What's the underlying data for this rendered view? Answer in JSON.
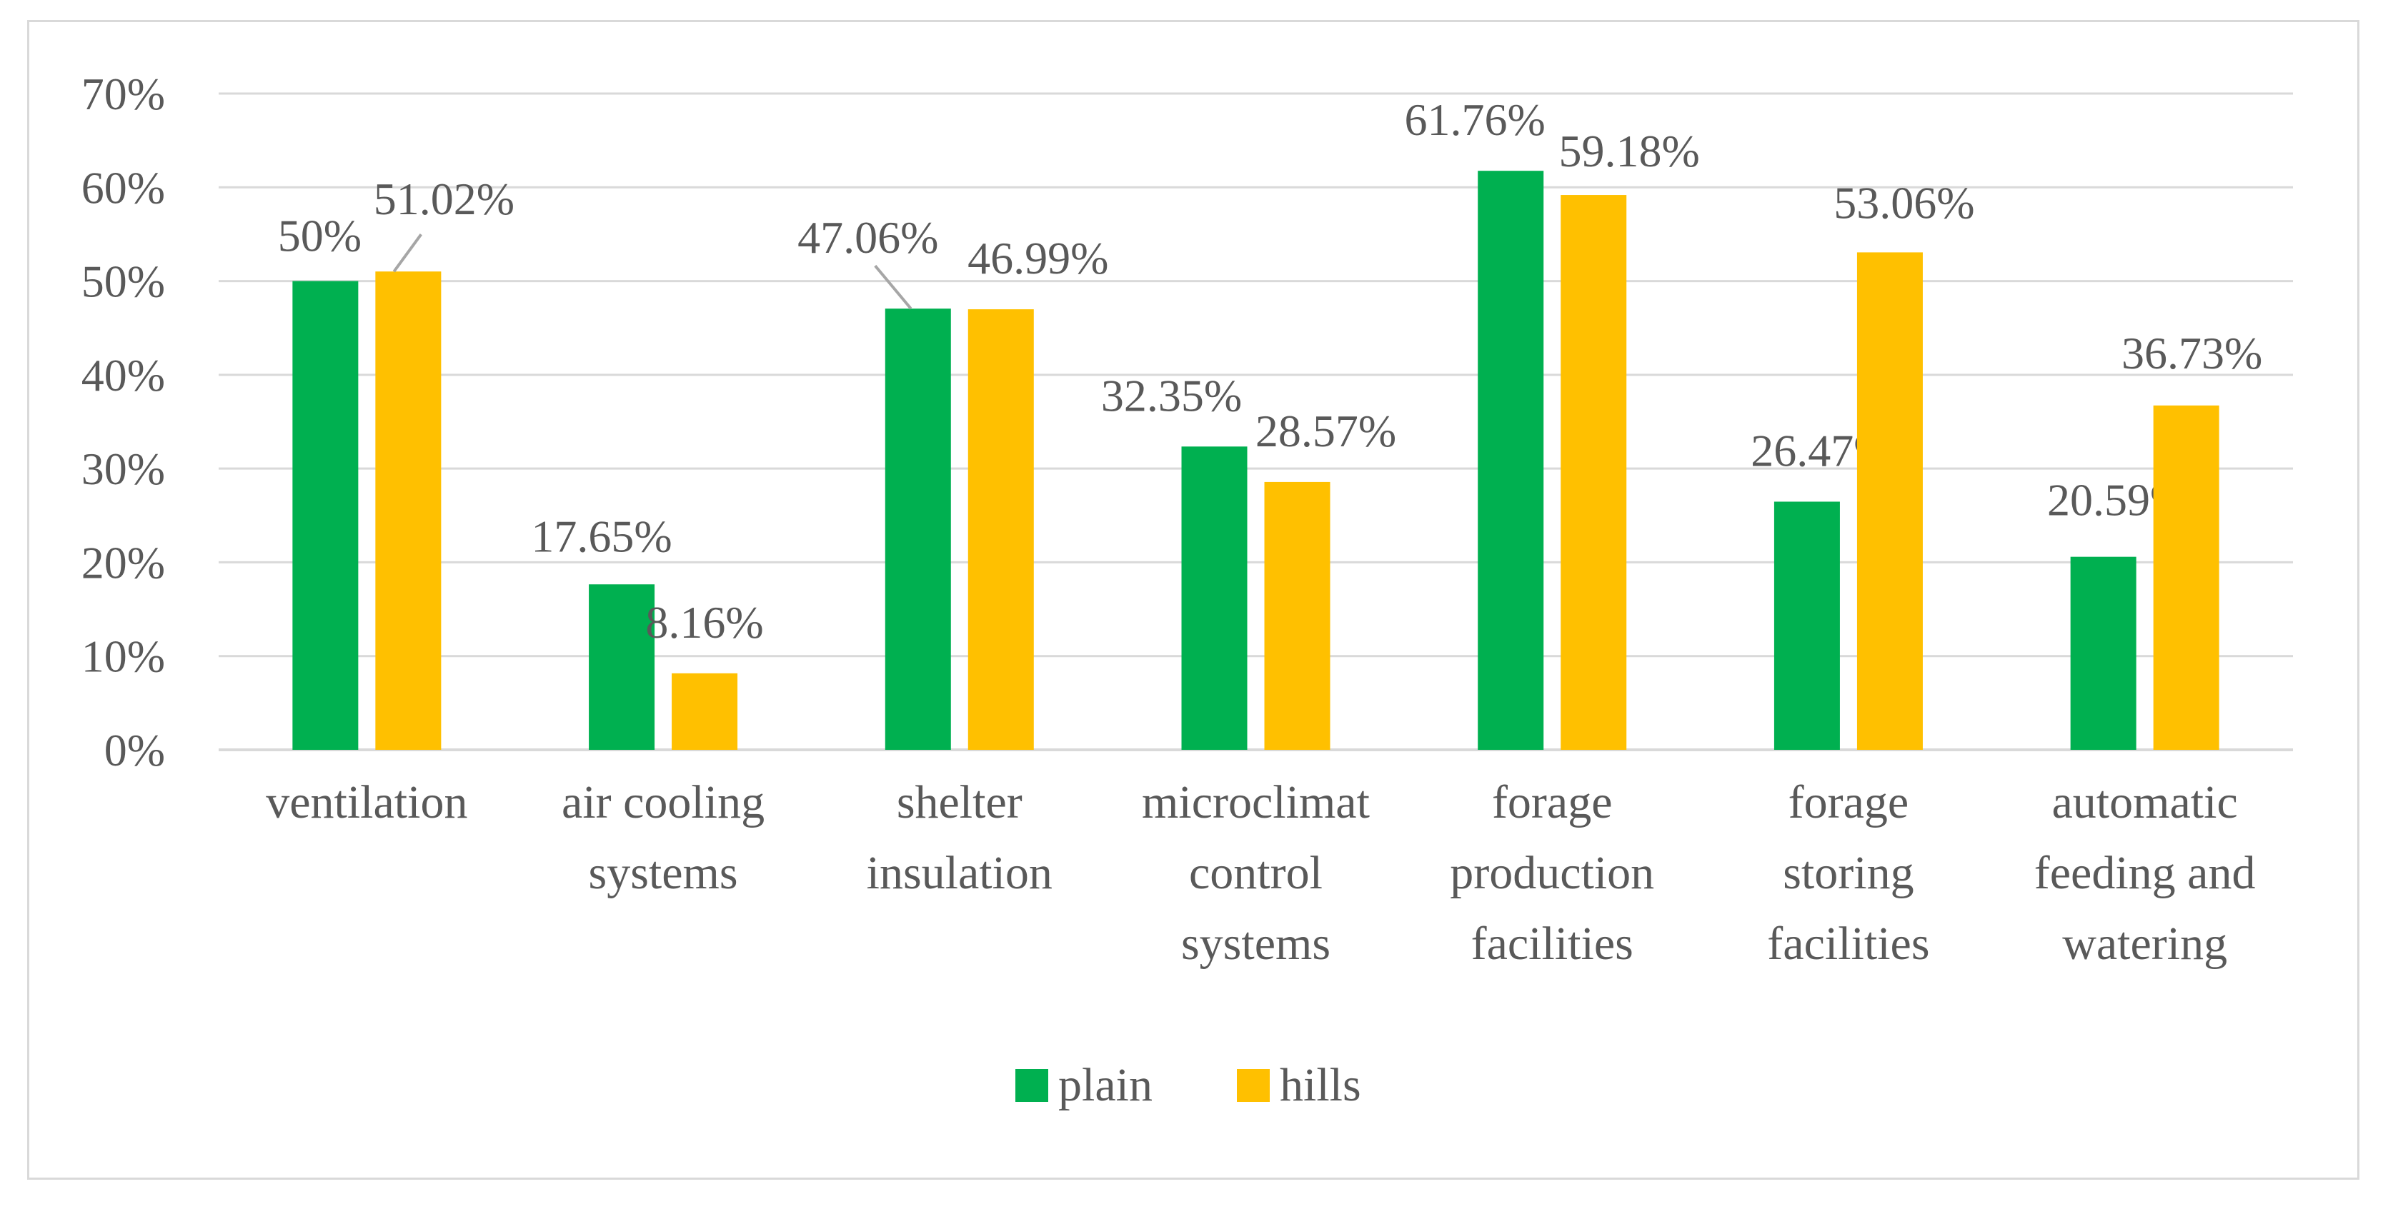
{
  "chart_data": {
    "type": "bar",
    "title": "",
    "xlabel": "",
    "ylabel": "",
    "ylim": [
      0,
      70
    ],
    "y_ticks": [
      "0%",
      "10%",
      "20%",
      "30%",
      "40%",
      "50%",
      "60%",
      "70%"
    ],
    "y_tick_values": [
      0,
      10,
      20,
      30,
      40,
      50,
      60,
      70
    ],
    "grid": true,
    "legend_position": "bottom",
    "categories": [
      [
        "ventilation"
      ],
      [
        "air cooling",
        "systems"
      ],
      [
        "shelter",
        "insulation"
      ],
      [
        "microclimat",
        "control",
        "systems"
      ],
      [
        "forage",
        "production",
        "facilities"
      ],
      [
        "forage",
        "storing",
        "facilities"
      ],
      [
        "automatic",
        "feeding and",
        "watering"
      ]
    ],
    "series": [
      {
        "name": "plain",
        "color": "#00b050",
        "values": [
          50,
          17.65,
          47.06,
          32.35,
          61.76,
          26.47,
          20.59
        ],
        "labels": [
          "50%",
          "17.65%",
          "47.06%",
          "32.35%",
          "61.76%",
          "26.47%",
          "20.59%"
        ]
      },
      {
        "name": "hills",
        "color": "#ffc000",
        "values": [
          51.02,
          8.16,
          46.99,
          28.57,
          59.18,
          53.06,
          36.73
        ],
        "labels": [
          "51.02%",
          "8.16%",
          "46.99%",
          "28.57%",
          "59.18%",
          "53.06%",
          "36.73%"
        ]
      }
    ]
  }
}
